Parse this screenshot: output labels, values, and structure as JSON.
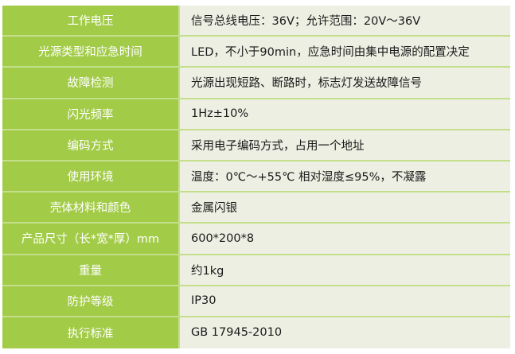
{
  "colors": {
    "label_bg": "#a2cb47",
    "value_bg": "#eeefe3",
    "separator": "#c4df8c"
  },
  "rows": [
    {
      "label": "工作电压",
      "value": "信号总线电压：36V；允许范围：20V～36V"
    },
    {
      "label": "光源类型和应急时间",
      "value": "LED，不小于90min，应急时间由集中电源的配置决定"
    },
    {
      "label": "故障检测",
      "value": "光源出现短路、断路时，标志灯发送故障信号"
    },
    {
      "label": "闪光频率",
      "value": "1Hz±10%"
    },
    {
      "label": "编码方式",
      "value": "采用电子编码方式，占用一个地址"
    },
    {
      "label": "使用环境",
      "value": "温度：0℃～+55℃ 相对湿度≤95%，不凝露"
    },
    {
      "label": "壳体材料和颜色",
      "value": "金属闪银"
    },
    {
      "label": "产品尺寸（长*宽*厚）mm",
      "value": "600*200*8"
    },
    {
      "label": "重量",
      "value": "约1kg"
    },
    {
      "label": "防护等级",
      "value": "IP30"
    },
    {
      "label": "执行标准",
      "value": "GB 17945-2010"
    }
  ]
}
